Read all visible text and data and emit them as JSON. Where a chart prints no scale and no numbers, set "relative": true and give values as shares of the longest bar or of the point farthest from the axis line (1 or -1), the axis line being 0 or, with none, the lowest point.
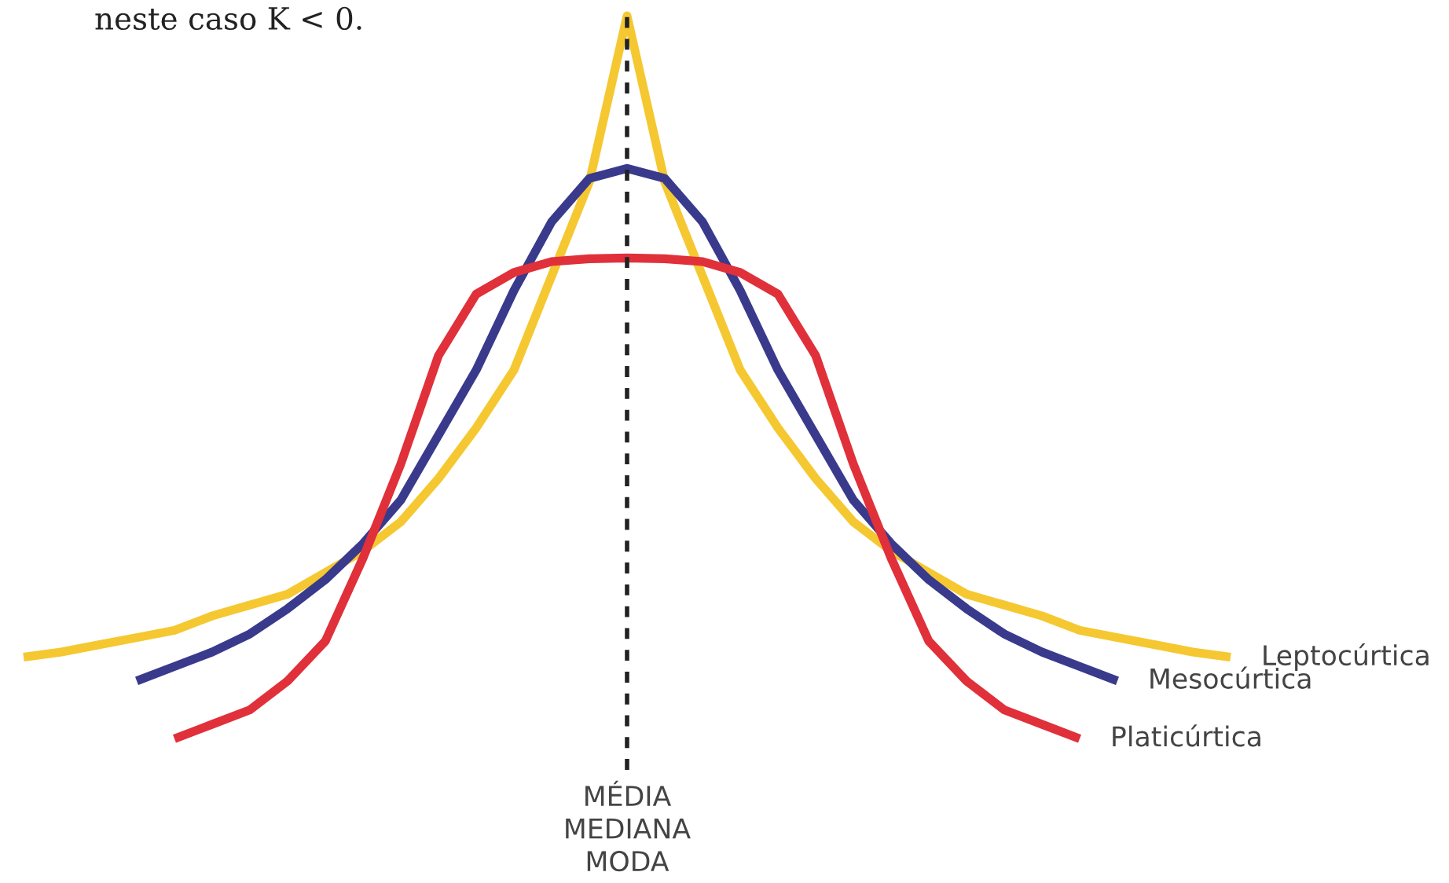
{
  "chart_data": {
    "type": "line",
    "relative": true,
    "marker": "none",
    "line_style": "solid",
    "annotations": [
      "neste caso K < 0."
    ],
    "ref_lines": [
      {
        "axis": "x",
        "label": "MÉDIA\nMEDIANA\nMODA",
        "color": "#222222",
        "line_style": "dashed"
      }
    ],
    "categories": [
      null,
      null,
      null,
      null,
      null,
      null,
      null,
      null,
      null,
      null,
      null,
      null,
      null,
      null,
      null,
      null,
      null,
      null,
      null,
      null,
      null,
      null,
      null,
      null,
      null,
      null,
      null,
      null,
      null,
      null,
      null,
      null,
      null
    ],
    "series": [
      {
        "name": "Leptocúrtica",
        "color": "#f5c831",
        "values": [
          0.113,
          0.12,
          0.13,
          0.14,
          0.15,
          0.17,
          0.185,
          0.2,
          0.23,
          0.26,
          0.3,
          0.36,
          0.43,
          0.51,
          0.64,
          0.77,
          1,
          0.77,
          0.64,
          0.51,
          0.43,
          0.36,
          0.3,
          0.26,
          0.23,
          0.2,
          0.185,
          0.17,
          0.15,
          0.14,
          0.13,
          0.12,
          0.113
        ]
      },
      {
        "name": "Mesocúrtica",
        "color": "#3a3a8c",
        "values": [
          null,
          null,
          null,
          0.08,
          0.1,
          0.12,
          0.145,
          0.18,
          0.22,
          0.27,
          0.33,
          0.42,
          0.51,
          0.62,
          0.715,
          0.775,
          0.789,
          0.775,
          0.715,
          0.62,
          0.51,
          0.42,
          0.33,
          0.27,
          0.22,
          0.18,
          0.145,
          0.12,
          0.1,
          0.08,
          null,
          null,
          null
        ]
      },
      {
        "name": "Platicúrtica",
        "color": "#e0303a",
        "values": [
          null,
          null,
          null,
          null,
          0,
          0.02,
          0.04,
          0.08,
          0.135,
          0.25,
          0.38,
          0.53,
          0.615,
          0.645,
          0.66,
          0.664,
          0.665,
          0.664,
          0.66,
          0.645,
          0.615,
          0.53,
          0.38,
          0.25,
          0.135,
          0.08,
          0.04,
          0.02,
          0,
          null,
          null,
          null,
          null
        ]
      }
    ]
  }
}
